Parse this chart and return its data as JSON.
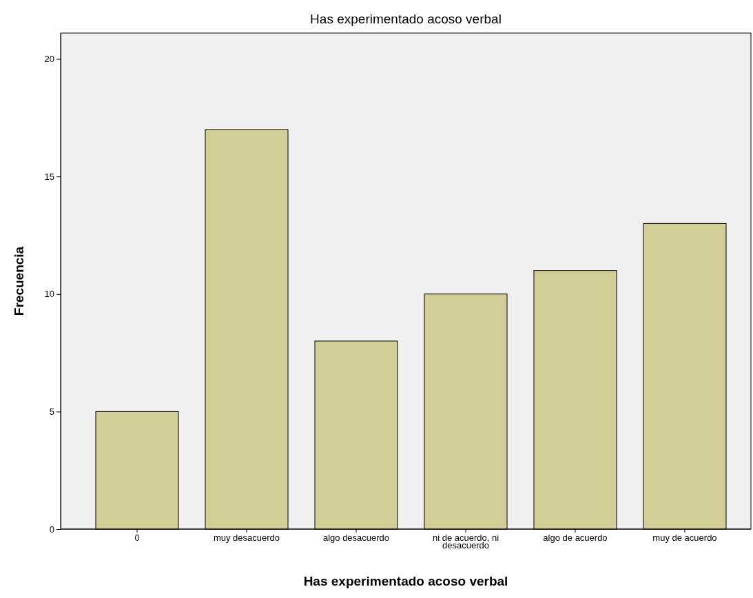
{
  "chart_data": {
    "type": "bar",
    "title": "Has experimentado acoso verbal",
    "xlabel": "Has experimentado acoso verbal",
    "ylabel": "Frecuencia",
    "categories": [
      "0",
      "muy desacuerdo",
      "algo desacuerdo",
      "ni de acuerdo, ni desacuerdo",
      "algo de acuerdo",
      "muy de acuerdo"
    ],
    "values": [
      5,
      17,
      8,
      10,
      11,
      13
    ],
    "color": "#d3ce97",
    "ylim": [
      0,
      21.1
    ],
    "yticks": [
      0,
      5,
      10,
      15,
      20
    ],
    "grid": false
  }
}
